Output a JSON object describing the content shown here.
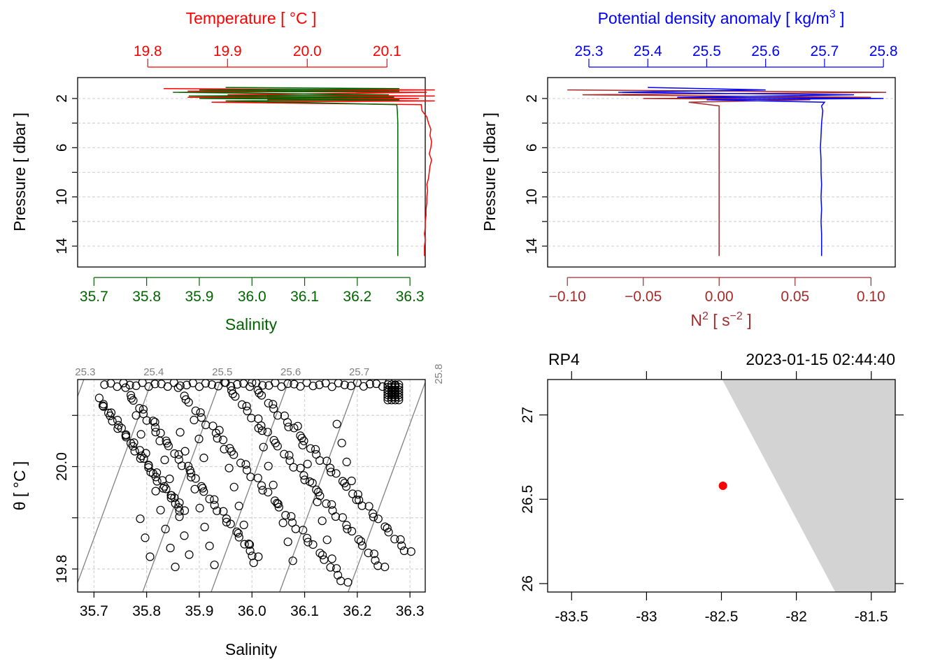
{
  "colors": {
    "temperature": "#ff0000",
    "salinity": "#006400",
    "density": "#0000ff",
    "n2": "#a52a2a",
    "grid": "#d3d3d3",
    "isopycnal": "#808080",
    "land": "#d3d3d3",
    "station": "#ff0000"
  },
  "chart_data": [
    {
      "type": "line",
      "panel": "salinity-temperature-profile",
      "title": "Temperature [ °C ]",
      "xlabel": "Salinity",
      "ylabel": "Pressure [ dbar ]",
      "top_axis": {
        "label": "Temperature [ °C ]",
        "ticks": [
          "19.8",
          "19.9",
          "20.0",
          "20.1"
        ],
        "range": [
          19.712,
          20.148
        ]
      },
      "bottom_axis": {
        "label": "Salinity",
        "ticks": [
          "35.7",
          "35.8",
          "35.9",
          "36.0",
          "36.1",
          "36.2",
          "36.3"
        ],
        "range": [
          35.669,
          36.329
        ]
      },
      "left_axis": {
        "ticks": [
          "2",
          "6",
          "10",
          "14"
        ],
        "range": [
          15.7,
          0.3
        ],
        "reversed": true
      },
      "series": [
        {
          "name": "Temperature",
          "pressure": [
            1.2,
            1.3,
            1.4,
            1.5,
            1.7,
            1.8,
            1.9,
            2.0,
            2.1,
            2.2,
            2.3,
            2.5,
            3,
            3.5,
            4,
            4.5,
            5,
            5.5,
            6,
            6.5,
            7,
            7.5,
            8,
            8.5,
            9,
            9.5,
            10,
            10.5,
            11,
            11.5,
            12,
            12.5,
            13,
            13.5,
            14,
            14.5,
            14.8
          ],
          "temperature": [
            19.82,
            20.16,
            19.85,
            20.15,
            19.9,
            20.16,
            19.85,
            20.14,
            19.95,
            20.16,
            19.88,
            20.143,
            20.144,
            20.15,
            20.152,
            20.155,
            20.154,
            20.156,
            20.155,
            20.153,
            20.156,
            20.154,
            20.153,
            20.152,
            20.15,
            20.151,
            20.15,
            20.15,
            20.149,
            20.149,
            20.148,
            20.148,
            20.147,
            20.148,
            20.147,
            20.147,
            20.147
          ]
        },
        {
          "name": "Salinity",
          "pressure": [
            1.1,
            1.2,
            1.3,
            1.4,
            1.5,
            1.7,
            1.8,
            1.9,
            2.0,
            2.1,
            2.2,
            2.5,
            3,
            4,
            5,
            6,
            7,
            8,
            9,
            10,
            11,
            12,
            13,
            14,
            14.8
          ],
          "salinity": [
            35.95,
            36.28,
            35.9,
            36.28,
            35.85,
            36.26,
            35.88,
            36.27,
            35.9,
            36.28,
            35.95,
            36.275,
            36.276,
            36.277,
            36.277,
            36.277,
            36.277,
            36.277,
            36.277,
            36.277,
            36.277,
            36.277,
            36.277,
            36.277,
            36.277
          ]
        }
      ]
    },
    {
      "type": "line",
      "panel": "density-n2-profile",
      "title": "Potential density anomaly [ kg/m3 ]",
      "xlabel": "N2 [ s-2 ]",
      "ylabel": "Pressure [ dbar ]",
      "top_axis": {
        "label_main": "Potential density anomaly [ kg/m",
        "label_sup": "3",
        "label_end": " ]",
        "ticks": [
          "25.3",
          "25.4",
          "25.5",
          "25.6",
          "25.7",
          "25.8"
        ],
        "range": [
          25.23,
          25.82
        ]
      },
      "bottom_axis": {
        "label_main": "N",
        "label_sup": "2",
        "label_mid": " [ s",
        "label_sup2": "−2",
        "label_end": " ]",
        "ticks": [
          "−0.10",
          "−0.05",
          "0.00",
          "0.05",
          "0.10"
        ],
        "range": [
          -0.113,
          0.116
        ]
      },
      "left_axis": {
        "ticks": [
          "2",
          "6",
          "10",
          "14"
        ],
        "range": [
          15.7,
          0.3
        ],
        "reversed": true
      },
      "series": [
        {
          "name": "Potential density anomaly",
          "pressure": [
            1.1,
            1.3,
            1.5,
            1.7,
            1.9,
            2.0,
            2.1,
            2.3,
            2.6,
            3,
            4,
            5,
            6,
            7,
            8,
            9,
            10,
            11,
            12,
            13,
            14,
            14.8
          ],
          "sigma": [
            25.4,
            25.6,
            25.35,
            25.75,
            25.45,
            25.8,
            25.5,
            25.7,
            25.695,
            25.697,
            25.695,
            25.694,
            25.693,
            25.694,
            25.694,
            25.695,
            25.694,
            25.695,
            25.694,
            25.695,
            25.695,
            25.695
          ]
        },
        {
          "name": "N2",
          "pressure": [
            1.3,
            1.5,
            1.7,
            1.9,
            2.0,
            2.1,
            2.3,
            2.6,
            3,
            14.8
          ],
          "n2": [
            -0.1,
            0.11,
            -0.09,
            0.1,
            -0.05,
            0.06,
            -0.02,
            0.0,
            0.0,
            0.0
          ]
        }
      ]
    },
    {
      "type": "scatter",
      "panel": "ts-diagram",
      "xlabel": "Salinity",
      "ylabel": "θ [ °C ]",
      "xlim": [
        35.669,
        36.329
      ],
      "ylim": [
        19.755,
        20.17
      ],
      "x_ticks": [
        "35.7",
        "35.8",
        "35.9",
        "36.0",
        "36.1",
        "36.2",
        "36.3"
      ],
      "y_ticks": [
        "19.8",
        "20.0"
      ],
      "isopycnal_labels": [
        "25.3",
        "25.4",
        "25.5",
        "25.6",
        "25.7",
        "25.8"
      ],
      "isopycnals": [
        25.3,
        25.4,
        25.5,
        25.6,
        25.7,
        25.8
      ],
      "branches": [
        {
          "start": [
            35.71,
            20.13
          ],
          "end": [
            35.87,
            19.91
          ]
        },
        {
          "start": [
            35.76,
            20.15
          ],
          "end": [
            36.01,
            19.82
          ]
        },
        {
          "start": [
            35.86,
            20.15
          ],
          "end": [
            36.18,
            19.77
          ]
        },
        {
          "start": [
            35.95,
            20.16
          ],
          "end": [
            36.25,
            19.8
          ]
        },
        {
          "start": [
            36.0,
            20.16
          ],
          "end": [
            36.3,
            19.83
          ]
        }
      ],
      "surface_points": {
        "s_range": [
          35.72,
          36.28
        ],
        "t": 20.16
      },
      "cluster": {
        "s": 36.27,
        "t": 20.15
      }
    },
    {
      "type": "map",
      "panel": "station-map",
      "station_name": "RP4",
      "timestamp": "2023-01-15 02:44:40",
      "lon_ticks": [
        "-83.5",
        "-83",
        "-82.5",
        "-82",
        "-81.5"
      ],
      "lat_ticks": [
        "26",
        "26.5",
        "27"
      ],
      "lon_range": [
        -83.66,
        -81.34
      ],
      "lat_range": [
        25.95,
        27.21
      ],
      "station": {
        "lon": -82.49,
        "lat": 26.58
      },
      "land_polygon": [
        [
          -82.495,
          27.21
        ],
        [
          -81.34,
          27.21
        ],
        [
          -81.34,
          25.95
        ],
        [
          -81.74,
          25.95
        ]
      ]
    }
  ]
}
